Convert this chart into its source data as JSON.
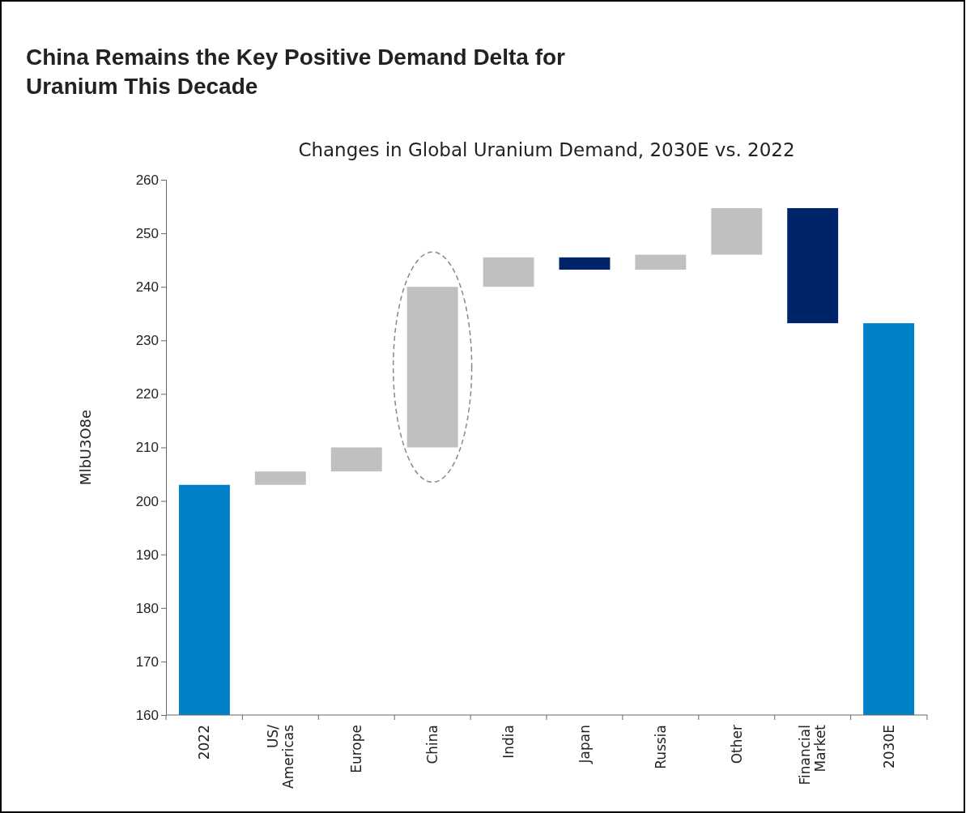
{
  "chart_data": {
    "type": "bar",
    "title": "China Remains the Key Positive Demand Delta for Uranium This Decade",
    "subtitle": "Changes in Global Uranium Demand, 2030E vs. 2022",
    "ylabel": "MlbU3O8e",
    "categories": [
      "2022",
      "US/ Americas",
      "Europe",
      "China",
      "India",
      "Japan",
      "Russia",
      "Other",
      "Financial Market",
      "2030E"
    ],
    "values": [
      203,
      2.5,
      4.5,
      30,
      5.5,
      -2.3,
      2.8,
      8.7,
      -21.5,
      233.2
    ],
    "base": [
      null,
      203,
      205.5,
      210,
      240,
      245.5,
      243.2,
      246,
      254.7,
      null
    ],
    "colors": [
      "#0080c8",
      "#c0c0c0",
      "#c0c0c0",
      "#c0c0c0",
      "#c0c0c0",
      "#002469",
      "#c0c0c0",
      "#c0c0c0",
      "#002469",
      "#0080c8"
    ],
    "ylim": [
      160,
      260
    ],
    "yticks": [
      160,
      170,
      180,
      190,
      200,
      210,
      220,
      230,
      240,
      250,
      260
    ],
    "grid": false,
    "legend": false
  }
}
